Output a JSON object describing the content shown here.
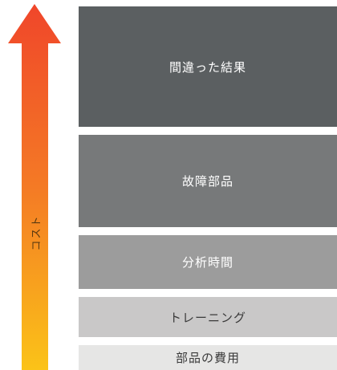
{
  "axis": {
    "label": "コスト",
    "gradient_top": "#f0462a",
    "gradient_bottom": "#fbc318"
  },
  "layers": [
    {
      "label": "間違った結果",
      "color": "#5b5f61",
      "text_color": "#ffffff"
    },
    {
      "label": "故障部品",
      "color": "#77797a",
      "text_color": "#ffffff"
    },
    {
      "label": "分析時間",
      "color": "#9c9c9c",
      "text_color": "#ffffff"
    },
    {
      "label": "トレーニング",
      "color": "#c9c8c8",
      "text_color": "#3a3a3a"
    },
    {
      "label": "部品の費用",
      "color": "#e6e6e5",
      "text_color": "#3a3a3a"
    }
  ]
}
